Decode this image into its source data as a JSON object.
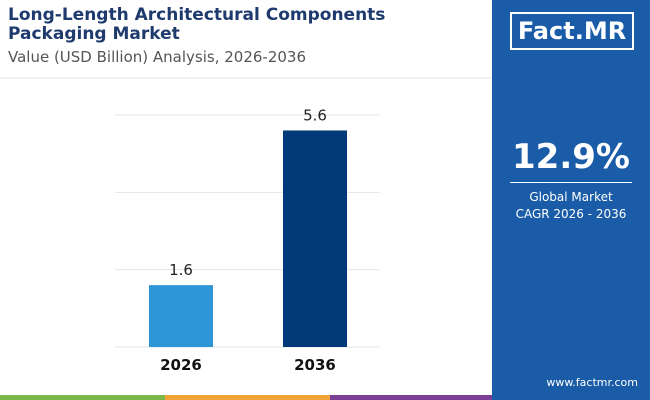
{
  "chart_data": {
    "type": "bar",
    "title": "Long-Length Architectural Components Packaging Market",
    "subtitle": "Value (USD Billion) Analysis, 2026-2036",
    "categories": [
      "2026",
      "2036"
    ],
    "values": [
      1.6,
      5.6
    ],
    "colors": [
      "#2e95d6",
      "#003a78"
    ],
    "ylim": [
      0,
      6
    ],
    "yticks": [
      0,
      2,
      4,
      6
    ],
    "grid": true
  },
  "panel": {
    "logo": "Fact.MR",
    "cagr": "12.9%",
    "label_lines": [
      "Global Market",
      "CAGR 2026 - 2036"
    ],
    "website": "www.factmr.com"
  }
}
